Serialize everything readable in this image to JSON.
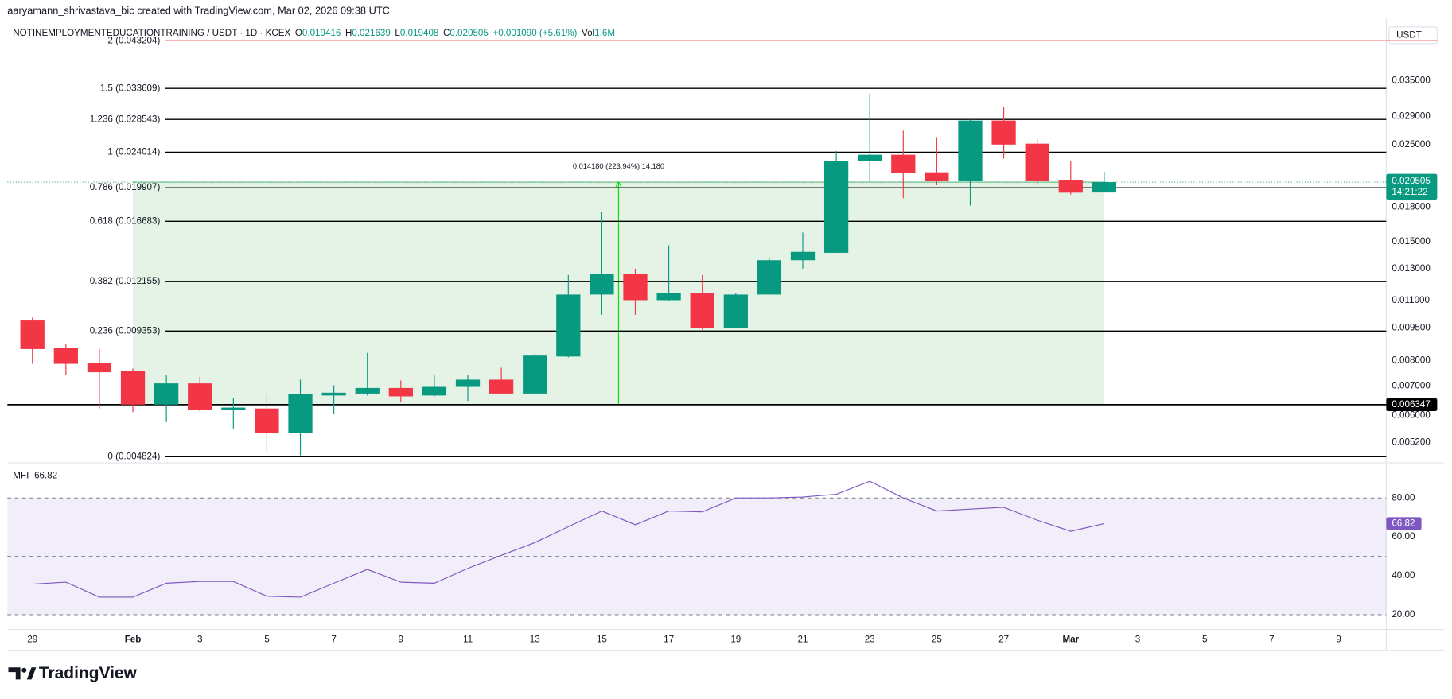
{
  "header": {
    "credit": "aaryamann_shrivastava_bic created with TradingView.com, Mar 02, 2026 09:38 UTC",
    "symbol": "NOTINEMPLOYMENTEDUCATIONTRAINING / USDT · 1D · KCEX",
    "o": "O",
    "h": "H",
    "l": "L",
    "c": "C",
    "change": "+0.001090 (+5.61%)",
    "vol": "Vol",
    "volume": "1.6M"
  },
  "chart_data": [
    {
      "type": "candlestick",
      "categories": [
        "29",
        null,
        null,
        "Feb",
        null,
        "3",
        null,
        "5",
        null,
        "7",
        null,
        "9",
        null,
        "11",
        null,
        "13",
        null,
        "15",
        null,
        "17",
        null,
        "19",
        null,
        "21",
        null,
        "23",
        null,
        "25",
        null,
        "27",
        null,
        "Mar",
        null,
        "3",
        null,
        "5",
        null,
        "7",
        null,
        "9",
        null
      ],
      "open": [
        0.00989,
        0.00855,
        0.00791,
        0.00757,
        0.00635,
        0.0071,
        0.00616,
        0.00622,
        0.00546,
        0.00666,
        0.00673,
        0.00693,
        0.00666,
        0.00697,
        0.00724,
        0.00673,
        0.00818,
        0.01134,
        0.01263,
        0.01101,
        0.01145,
        0.00952,
        0.01134,
        0.01359,
        0.01413,
        0.02289,
        0.02369,
        0.0216,
        0.02067,
        0.02837,
        0.02512,
        0.02077,
        0.019416,
        null,
        null,
        null,
        null,
        null,
        null,
        null,
        null
      ],
      "high": [
        0.01004,
        0.00872,
        0.00851,
        0.00768,
        0.00742,
        0.00735,
        0.00657,
        0.00673,
        0.00724,
        0.00703,
        0.00834,
        0.00721,
        0.00742,
        0.00742,
        0.00771,
        0.0083,
        0.01257,
        0.01751,
        0.013,
        0.01469,
        0.01257,
        0.01145,
        0.01379,
        0.01573,
        0.02416,
        0.03269,
        0.02689,
        0.02599,
        0.02851,
        0.03053,
        0.02574,
        0.02289,
        0.021639,
        null,
        null,
        null,
        null,
        null,
        null,
        null,
        null
      ],
      "low": [
        0.00787,
        0.00742,
        0.00622,
        0.0061,
        0.00579,
        0.00613,
        0.00559,
        0.00497,
        0.00486,
        0.00604,
        0.00666,
        0.00644,
        0.00663,
        0.00647,
        0.0067,
        0.0067,
        0.00814,
        0.01019,
        0.01019,
        0.01096,
        0.00942,
        0.00952,
        0.01134,
        0.013,
        0.01413,
        0.02067,
        0.01884,
        0.02017,
        0.01812,
        0.02323,
        0.02017,
        0.01921,
        0.019408,
        null,
        null,
        null,
        null,
        null,
        null,
        null,
        null
      ],
      "close": [
        0.00851,
        0.00787,
        0.00753,
        0.00635,
        0.0071,
        0.00616,
        0.00625,
        0.00546,
        0.0067,
        0.00676,
        0.00693,
        0.00663,
        0.00697,
        0.00724,
        0.00673,
        0.00822,
        0.01134,
        0.01263,
        0.01101,
        0.01145,
        0.00952,
        0.01134,
        0.01359,
        0.0142,
        0.02289,
        0.02369,
        0.02149,
        0.02067,
        0.02837,
        0.025,
        0.02067,
        0.0194,
        0.020505,
        null,
        null,
        null,
        null,
        null,
        null,
        null,
        null
      ],
      "up_color": "#089981",
      "down_color": "#f23645",
      "log_scale": true,
      "grid": false,
      "currency": "USDT",
      "ylim": [
        0.00467,
        0.0467
      ],
      "yticks": [
        {
          "value": 0.035,
          "label": "0.035000"
        },
        {
          "value": 0.029,
          "label": "0.029000"
        },
        {
          "value": 0.025,
          "label": "0.025000"
        },
        {
          "value": 0.018,
          "label": "0.018000"
        },
        {
          "value": 0.015,
          "label": "0.015000"
        },
        {
          "value": 0.013,
          "label": "0.013000"
        },
        {
          "value": 0.011,
          "label": "0.011000"
        },
        {
          "value": 0.0095,
          "label": "0.009500"
        },
        {
          "value": 0.008,
          "label": "0.008000"
        },
        {
          "value": 0.007,
          "label": "0.007000"
        },
        {
          "value": 0.006,
          "label": "0.006000"
        },
        {
          "value": 0.0052,
          "label": "0.005200"
        }
      ],
      "fib_levels": [
        {
          "label": "2 (0.043204)",
          "value": 0.043204,
          "color": "#f23645"
        },
        {
          "label": "1.5 (0.033609)",
          "value": 0.033609,
          "color": "#000000"
        },
        {
          "label": "1.236 (0.028543)",
          "value": 0.028543,
          "color": "#000000"
        },
        {
          "label": "1 (0.024014)",
          "value": 0.024014,
          "color": "#000000"
        },
        {
          "label": "0.786 (0.019907)",
          "value": 0.019907,
          "color": "#000000"
        },
        {
          "label": "0.618 (0.016683)",
          "value": 0.016683,
          "color": "#000000"
        },
        {
          "label": "0.382 (0.012155)",
          "value": 0.012155,
          "color": "#000000"
        },
        {
          "label": "0.236 (0.009353)",
          "value": 0.009353,
          "color": "#000000"
        },
        {
          "label": "0 (0.004824)",
          "value": 0.004824,
          "color": "#000000"
        }
      ],
      "hline": 0.006347,
      "countdown": "14:21:22",
      "measure": {
        "label": "0.014180 (223.94%) 14,180",
        "color": "#4caf50"
      }
    },
    {
      "type": "line",
      "name": "MFI",
      "color": "#7e57c2",
      "values": [
        35.7,
        36.7,
        29.0,
        29.0,
        36.2,
        37.1,
        37.1,
        29.5,
        29.0,
        36.2,
        43.3,
        36.7,
        36.2,
        43.8,
        50.5,
        57.1,
        65.2,
        73.3,
        66.2,
        73.3,
        72.9,
        80.0,
        80.0,
        80.5,
        81.9,
        88.6,
        80.0,
        73.3,
        74.3,
        75.2,
        68.6,
        62.9,
        66.82,
        null,
        null,
        null,
        null,
        null,
        null,
        null,
        null
      ],
      "ylim": [
        12.4,
        95.2
      ],
      "yticks": [
        {
          "value": 80,
          "label": "80.00"
        },
        {
          "value": 60,
          "label": "60.00"
        },
        {
          "value": 40,
          "label": "40.00"
        },
        {
          "value": 20,
          "label": "20.00"
        }
      ],
      "band": [
        20,
        80
      ],
      "midline": 50
    }
  ],
  "footer": {
    "brand": "TradingView"
  }
}
